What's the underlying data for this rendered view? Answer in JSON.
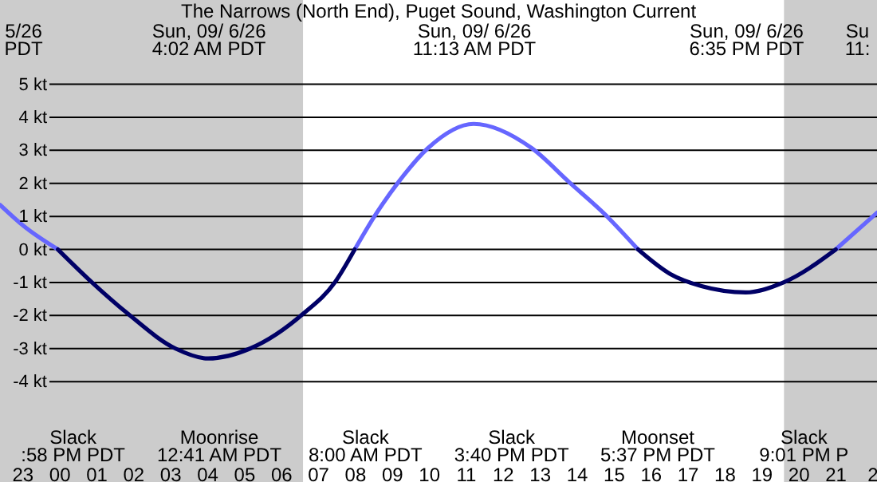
{
  "chart_data": {
    "type": "line",
    "title": "The Narrows (North End), Puget Sound, Washington Current",
    "x": [
      "--09-05T22:24",
      "--09-05T23:03",
      "--09-05T23:58",
      "--09-06T00:53",
      "--09-06T01:52",
      "--09-06T03:09",
      "--09-06T04:02",
      "--09-06T05:10",
      "--09-06T06:36",
      "--09-06T07:28",
      "--09-06T08:00",
      "--09-06T08:33",
      "--09-06T09:11",
      "--09-06T09:59",
      "--09-06T11:13",
      "--09-06T12:47",
      "--09-06T13:48",
      "--09-06T14:48",
      "--09-06T15:40",
      "--09-06T16:32",
      "--09-06T17:23",
      "--09-06T18:35",
      "--09-06T19:37",
      "--09-06T21:01",
      "--09-06T22:08"
    ],
    "series": [
      {
        "color": "#6666ff",
        "values": [
          1.35,
          0.7,
          0,
          null,
          null,
          null,
          null,
          null,
          null,
          null,
          0,
          1.03,
          2.04,
          3.07,
          3.8,
          3.07,
          2.04,
          1.03,
          0,
          null,
          null,
          null,
          null,
          0,
          1.11
        ]
      },
      {
        "color": "#000066",
        "values": [
          null,
          null,
          0,
          -0.99,
          -1.95,
          -3.0,
          -3.3,
          -3.0,
          -1.95,
          -0.99,
          0,
          null,
          null,
          null,
          null,
          null,
          null,
          null,
          0,
          -0.74,
          -1.11,
          -1.3,
          -0.99,
          0,
          null
        ]
      }
    ],
    "xlim": [
      "--09-05T22:24",
      "--09-06T22:08"
    ],
    "xticks": [
      {
        "value": "--09-05T23:00",
        "label": "23"
      },
      {
        "value": "--09-06T00:00",
        "label": "00"
      },
      {
        "value": "--09-06T01:00",
        "label": "01"
      },
      {
        "value": "--09-06T02:00",
        "label": "02"
      },
      {
        "value": "--09-06T03:00",
        "label": "03"
      },
      {
        "value": "--09-06T04:00",
        "label": "04"
      },
      {
        "value": "--09-06T05:00",
        "label": "05"
      },
      {
        "value": "--09-06T06:00",
        "label": "06"
      },
      {
        "value": "--09-06T07:00",
        "label": "07"
      },
      {
        "value": "--09-06T08:00",
        "label": "08"
      },
      {
        "value": "--09-06T09:00",
        "label": "09"
      },
      {
        "value": "--09-06T10:00",
        "label": "10"
      },
      {
        "value": "--09-06T11:00",
        "label": "11"
      },
      {
        "value": "--09-06T12:00",
        "label": "12"
      },
      {
        "value": "--09-06T13:00",
        "label": "13"
      },
      {
        "value": "--09-06T14:00",
        "label": "14"
      },
      {
        "value": "--09-06T15:00",
        "label": "15"
      },
      {
        "value": "--09-06T16:00",
        "label": "16"
      },
      {
        "value": "--09-06T17:00",
        "label": "17"
      },
      {
        "value": "--09-06T18:00",
        "label": "18"
      },
      {
        "value": "--09-06T19:00",
        "label": "19"
      },
      {
        "value": "--09-06T20:00",
        "label": "20"
      },
      {
        "value": "--09-06T21:00",
        "label": "21"
      },
      {
        "value": "--09-06T22:00",
        "label": "2"
      }
    ],
    "x2lim": [
      "--09-05T22:24",
      "--09-06T22:08"
    ],
    "x2ticks": [
      {
        "value": "--09-05T23:01",
        "label": "5/26\nPDT"
      },
      {
        "value": "--09-06T04:02",
        "label": "Sun, 09/ 6/26\n4:02 AM PDT"
      },
      {
        "value": "--09-06T11:13",
        "label": "Sun, 09/ 6/26\n11:13 AM PDT"
      },
      {
        "value": "--09-06T18:35",
        "label": "Sun, 09/ 6/26\n6:35 PM PDT"
      },
      {
        "value": "--09-06T21:35",
        "label": "Su\n11:"
      }
    ],
    "ylim": [
      -7.04,
      7.55
    ],
    "yticks": [
      {
        "value": -4,
        "label": "-4 kt"
      },
      {
        "value": -3,
        "label": "-3 kt"
      },
      {
        "value": -2,
        "label": "-2 kt"
      },
      {
        "value": -1,
        "label": "-1 kt"
      },
      {
        "value": 0,
        "label": "0 kt"
      },
      {
        "value": 1,
        "label": "1 kt"
      },
      {
        "value": 2,
        "label": "2 kt"
      },
      {
        "value": 3,
        "label": "3 kt"
      },
      {
        "value": 4,
        "label": "4 kt"
      },
      {
        "value": 5,
        "label": "5 kt"
      }
    ],
    "grid": "y",
    "bands": [
      {
        "axis": "x",
        "from": "--09-05T22:24",
        "to": "--09-06T06:36",
        "color": "#cccccc"
      },
      {
        "axis": "x",
        "from": "--09-06T19:37",
        "to": "--09-06T22:08",
        "color": "#cccccc"
      }
    ],
    "annotations": [
      "Slack\n:58 PM PDT",
      "Moonrise\n12:41 AM PDT",
      "Slack\n8:00 AM PDT",
      "Slack\n3:40 PM PDT",
      "Moonset\n5:37 PM PDT",
      "Slack\n9:01 PM P"
    ]
  }
}
